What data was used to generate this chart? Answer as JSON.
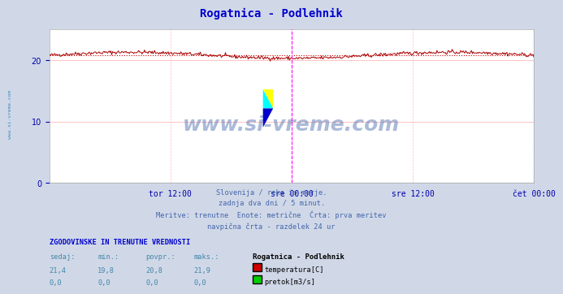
{
  "title": "Rogatnica - Podlehnik",
  "title_color": "#0000cc",
  "bg_color": "#d0d8e8",
  "plot_bg_color": "#ffffff",
  "temp_line_color": "#aa0000",
  "temp_avg_line_color": "#cc0000",
  "flow_line_color": "#00aa00",
  "grid_color": "#ffaaaa",
  "tick_color": "#0000aa",
  "temp_min": 19.8,
  "temp_max": 21.9,
  "temp_avg": 20.8,
  "ylim": [
    0,
    25
  ],
  "yticks": [
    0,
    10,
    20
  ],
  "x_ticks_labels": [
    "tor 12:00",
    "sre 00:00",
    "sre 12:00",
    "čet 00:00"
  ],
  "x_ticks_pos": [
    0.25,
    0.5,
    0.75,
    1.0
  ],
  "subtitle_lines": [
    "Slovenija / reke in morje.",
    "zadnja dva dni / 5 minut.",
    "Meritve: trenutne  Enote: metrične  Črta: prva meritev",
    "navpična črta - razdelek 24 ur"
  ],
  "table_title": "ZGODOVINSKE IN TRENUTNE VREDNOSTI",
  "table_headers": [
    "sedaj:",
    "min.:",
    "povpr.:",
    "maks.:"
  ],
  "table_row1": [
    "21,4",
    "19,8",
    "20,8",
    "21,9"
  ],
  "table_row2": [
    "0,0",
    "0,0",
    "0,0",
    "0,0"
  ],
  "legend_title": "Rogatnica - Podlehnik",
  "legend_temp_label": "temperatura[C]",
  "legend_flow_label": "pretok[m3/s]",
  "legend_temp_color": "#cc0000",
  "legend_flow_color": "#00cc00",
  "watermark": "www.si-vreme.com",
  "watermark_color": "#4466aa",
  "sidebar_text": "www.si-vreme.com",
  "sidebar_color": "#4488bb"
}
